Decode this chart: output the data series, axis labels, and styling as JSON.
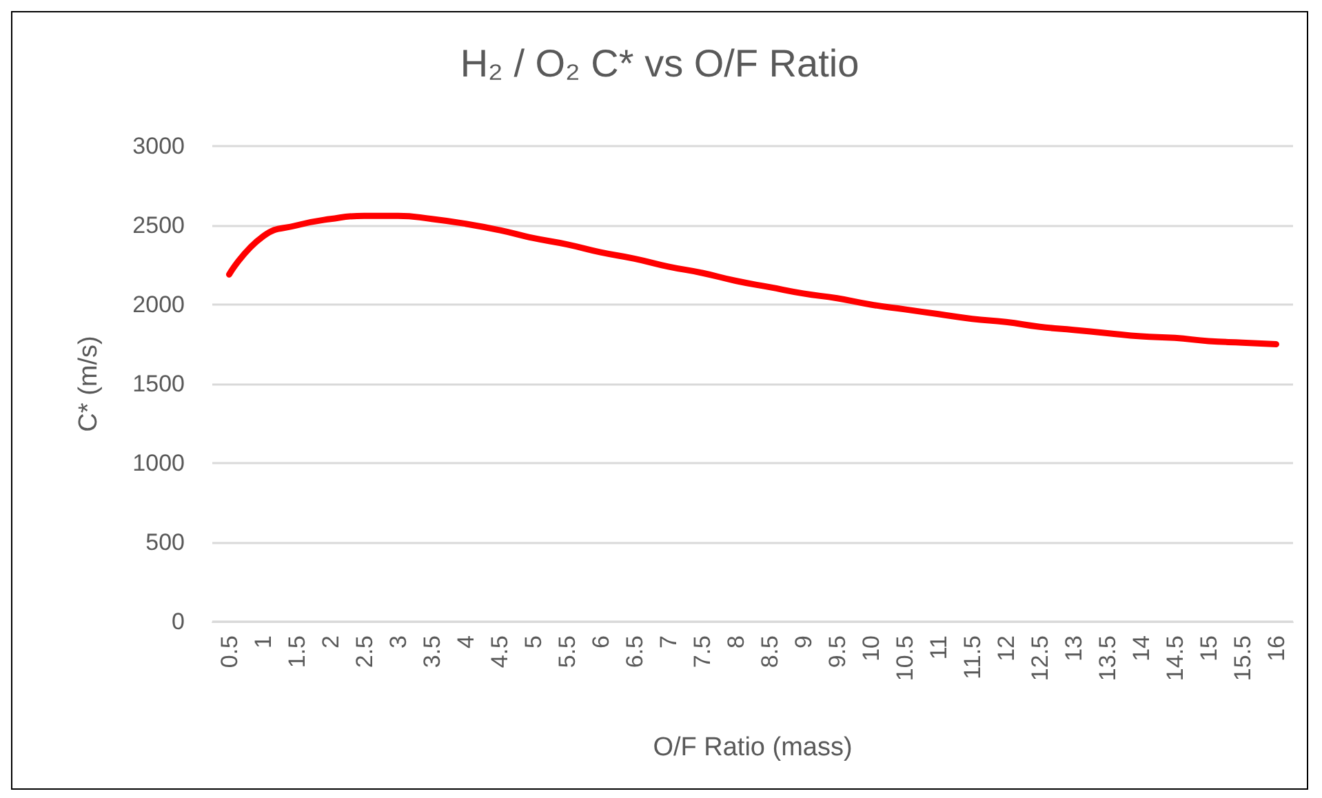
{
  "chart_data": {
    "type": "line",
    "title": "H₂ / O₂ C* vs O/F Ratio",
    "xlabel": "O/F Ratio (mass)",
    "ylabel": "C* (m/s)",
    "categories": [
      "0.5",
      "1",
      "1.5",
      "2",
      "2.5",
      "3",
      "3.5",
      "4",
      "4.5",
      "5",
      "5.5",
      "6",
      "6.5",
      "7",
      "7.5",
      "8",
      "8.5",
      "9",
      "9.5",
      "10",
      "10.5",
      "11",
      "11.5",
      "12",
      "12.5",
      "13",
      "13.5",
      "14",
      "14.5",
      "15",
      "15.5",
      "16"
    ],
    "series": [
      {
        "color": "#ff0000",
        "values": [
          2190,
          2430,
          2500,
          2540,
          2560,
          2560,
          2540,
          2510,
          2470,
          2420,
          2380,
          2330,
          2290,
          2240,
          2200,
          2150,
          2110,
          2070,
          2040,
          2000,
          1970,
          1940,
          1910,
          1890,
          1860,
          1840,
          1820,
          1800,
          1790,
          1770,
          1760,
          1750
        ]
      }
    ],
    "ylim": [
      0,
      3000
    ],
    "yticks": [
      0,
      500,
      1000,
      1500,
      2000,
      2500,
      3000
    ],
    "grid": "y",
    "marker": "none",
    "line_style": "solid"
  }
}
